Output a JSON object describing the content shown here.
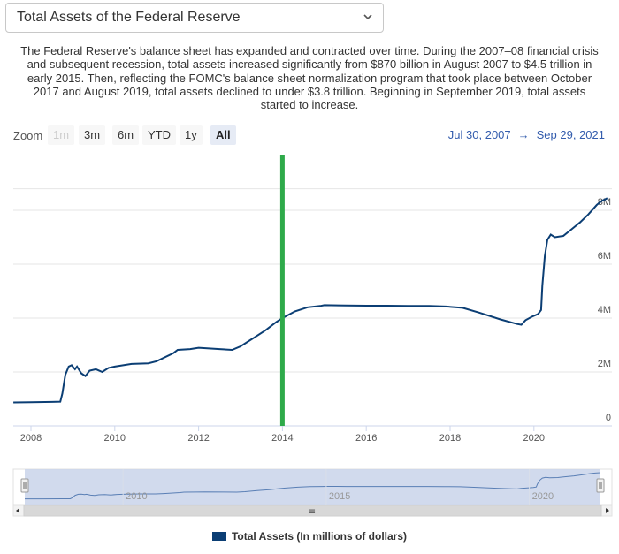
{
  "selector": {
    "value": "Total Assets of the Federal Reserve"
  },
  "description": "The Federal Reserve's balance sheet has expanded and contracted over time. During the 2007–08 financial crisis and subsequent recession, total assets increased significantly from $870 billion in August 2007 to $4.5 trillion in early 2015. Then, reflecting the FOMC's balance sheet normalization program that took place between October 2017 and August 2019, total assets declined to under $3.8 trillion. Beginning in September 2019, total assets started to increase.",
  "zoom": {
    "label": "Zoom",
    "buttons": [
      "1m",
      "3m",
      "6m",
      "YTD",
      "1y",
      "All"
    ],
    "active": "All",
    "disabled": [
      "1m"
    ]
  },
  "range": {
    "from": "Jul 30, 2007",
    "arrow": "→",
    "to": "Sep 29, 2021"
  },
  "colors": {
    "series": "#0b3e74",
    "marker": "#2eaa4a",
    "navigator_fill": "#c9d3ea"
  },
  "navigator": {
    "tick_labels": [
      "2010",
      "2015",
      "2020"
    ],
    "scroll_grip": "≡"
  },
  "chart_data": {
    "type": "line",
    "title": "",
    "xlabel": "",
    "ylabel": "",
    "x_ticks": [
      "2008",
      "2010",
      "2012",
      "2014",
      "2016",
      "2018",
      "2020"
    ],
    "y_ticks": [
      "0",
      "2M",
      "4M",
      "6M",
      "8M"
    ],
    "ylim": [
      0,
      9.1
    ],
    "xlim": [
      2007.58,
      2021.75
    ],
    "grid": true,
    "legend_position": "bottom-center",
    "vertical_marker_x": 2014.0,
    "series": [
      {
        "name": "Total Assets (In millions of dollars)",
        "points": [
          [
            2007.58,
            0.87
          ],
          [
            2008.0,
            0.88
          ],
          [
            2008.5,
            0.89
          ],
          [
            2008.7,
            0.9
          ],
          [
            2008.75,
            1.2
          ],
          [
            2008.82,
            1.9
          ],
          [
            2008.9,
            2.2
          ],
          [
            2008.97,
            2.25
          ],
          [
            2009.05,
            2.1
          ],
          [
            2009.1,
            2.2
          ],
          [
            2009.2,
            1.95
          ],
          [
            2009.3,
            1.85
          ],
          [
            2009.4,
            2.05
          ],
          [
            2009.55,
            2.1
          ],
          [
            2009.7,
            2.0
          ],
          [
            2009.85,
            2.15
          ],
          [
            2010.0,
            2.2
          ],
          [
            2010.4,
            2.3
          ],
          [
            2010.8,
            2.32
          ],
          [
            2011.0,
            2.4
          ],
          [
            2011.4,
            2.7
          ],
          [
            2011.5,
            2.82
          ],
          [
            2011.8,
            2.85
          ],
          [
            2012.0,
            2.9
          ],
          [
            2012.5,
            2.85
          ],
          [
            2012.8,
            2.82
          ],
          [
            2013.0,
            2.95
          ],
          [
            2013.3,
            3.25
          ],
          [
            2013.6,
            3.55
          ],
          [
            2013.85,
            3.85
          ],
          [
            2014.0,
            4.0
          ],
          [
            2014.3,
            4.25
          ],
          [
            2014.6,
            4.4
          ],
          [
            2014.9,
            4.45
          ],
          [
            2015.0,
            4.48
          ],
          [
            2015.5,
            4.47
          ],
          [
            2016.0,
            4.46
          ],
          [
            2016.5,
            4.46
          ],
          [
            2017.0,
            4.45
          ],
          [
            2017.5,
            4.45
          ],
          [
            2017.9,
            4.43
          ],
          [
            2018.3,
            4.38
          ],
          [
            2018.7,
            4.2
          ],
          [
            2019.2,
            3.95
          ],
          [
            2019.6,
            3.78
          ],
          [
            2019.7,
            3.75
          ],
          [
            2019.8,
            3.92
          ],
          [
            2019.95,
            4.05
          ],
          [
            2020.1,
            4.15
          ],
          [
            2020.17,
            4.3
          ],
          [
            2020.2,
            5.2
          ],
          [
            2020.26,
            6.3
          ],
          [
            2020.32,
            6.9
          ],
          [
            2020.4,
            7.1
          ],
          [
            2020.5,
            7.0
          ],
          [
            2020.7,
            7.05
          ],
          [
            2020.9,
            7.3
          ],
          [
            2021.1,
            7.55
          ],
          [
            2021.3,
            7.85
          ],
          [
            2021.5,
            8.2
          ],
          [
            2021.62,
            8.35
          ],
          [
            2021.75,
            8.45
          ]
        ]
      }
    ]
  }
}
